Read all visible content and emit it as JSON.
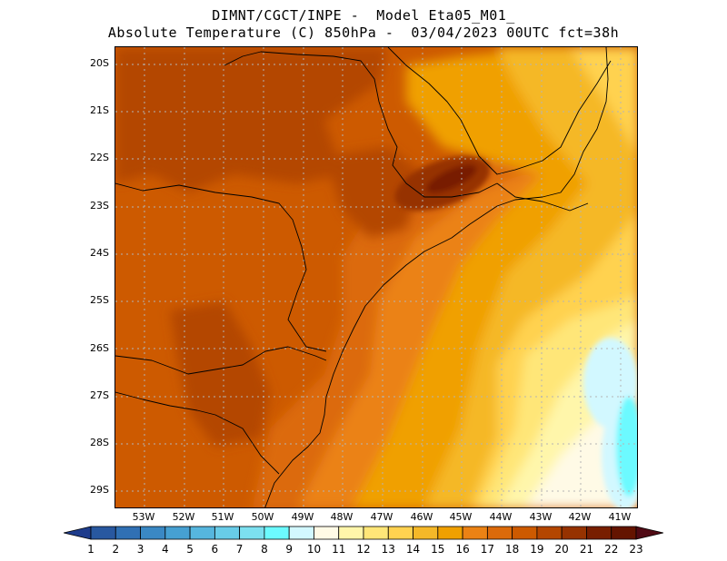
{
  "title_line1": "DIMNT/CGCT/INPE -  Model Eta05_M01_",
  "title_line2": "Absolute Temperature (C) 850hPa -  03/04/2023 00UTC fct=38h",
  "latitude_labels": [
    "20S",
    "21S",
    "22S",
    "23S",
    "24S",
    "25S",
    "26S",
    "27S",
    "28S",
    "29S"
  ],
  "longitude_labels": [
    "53W",
    "52W",
    "51W",
    "50W",
    "49W",
    "48W",
    "47W",
    "46W",
    "45W",
    "44W",
    "43W",
    "42W",
    "41W"
  ],
  "colorbar": {
    "labels": [
      "1",
      "2",
      "3",
      "4",
      "5",
      "6",
      "7",
      "8",
      "9",
      "10",
      "11",
      "12",
      "13",
      "14",
      "15",
      "16",
      "17",
      "18",
      "19",
      "20",
      "21",
      "22",
      "23"
    ],
    "colors": [
      "#1e3c8c",
      "#2858a0",
      "#3070b4",
      "#3a88c4",
      "#46a0d2",
      "#56b6de",
      "#68cce8",
      "#7ce0f0",
      "#6cfaff",
      "#d2f8ff",
      "#fffae6",
      "#fff6aa",
      "#ffe678",
      "#ffd250",
      "#f5b828",
      "#f0a000",
      "#eb8214",
      "#dc6a0a",
      "#cd5a00",
      "#b44600",
      "#963200",
      "#781e00",
      "#641400",
      "#500a14"
    ]
  }
}
